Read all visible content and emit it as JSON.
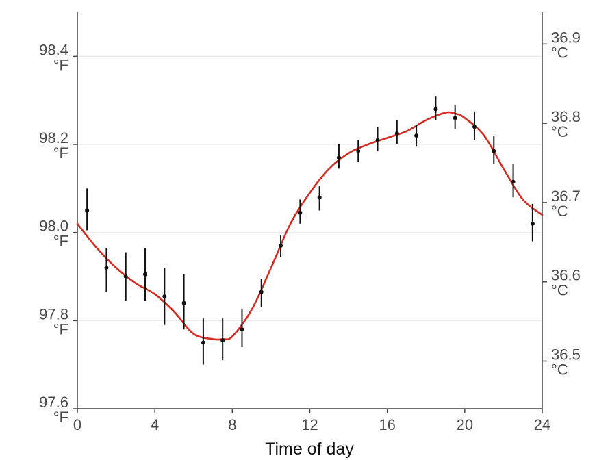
{
  "chart_data": {
    "type": "line",
    "title": "",
    "xlabel": "Time of day",
    "ylabel": "",
    "xlim": [
      0,
      24
    ],
    "ylim": [
      97.6,
      98.5
    ],
    "y2lim": [
      36.44,
      36.94
    ],
    "grid": "horizontal",
    "x_ticks": [
      {
        "value": 0,
        "label": "0"
      },
      {
        "value": 4,
        "label": "4"
      },
      {
        "value": 8,
        "label": "8"
      },
      {
        "value": 12,
        "label": "12"
      },
      {
        "value": 16,
        "label": "16"
      },
      {
        "value": 20,
        "label": "20"
      },
      {
        "value": 24,
        "label": "24"
      }
    ],
    "y_ticks_left": [
      {
        "value": 97.6,
        "num": "97.6",
        "unit": "°F"
      },
      {
        "value": 97.8,
        "num": "97.8",
        "unit": "°F"
      },
      {
        "value": 98.0,
        "num": "98.0",
        "unit": "°F"
      },
      {
        "value": 98.2,
        "num": "98.2",
        "unit": "°F"
      },
      {
        "value": 98.4,
        "num": "98.4",
        "unit": "°F"
      }
    ],
    "y_ticks_right": [
      {
        "value": 36.5,
        "num": "36.5",
        "unit": "°C"
      },
      {
        "value": 36.6,
        "num": "36.6",
        "unit": "°C"
      },
      {
        "value": 36.7,
        "num": "36.7",
        "unit": "°C"
      },
      {
        "value": 36.8,
        "num": "36.8",
        "unit": "°C"
      },
      {
        "value": 36.9,
        "num": "36.9",
        "unit": "°C"
      }
    ],
    "series": [
      {
        "kind": "points_with_error_bars",
        "color": "#111111",
        "x": [
          0.5,
          1.5,
          2.5,
          3.5,
          4.5,
          5.5,
          6.5,
          7.5,
          8.5,
          9.5,
          10.5,
          11.5,
          12.5,
          13.5,
          14.5,
          15.5,
          16.5,
          17.5,
          18.5,
          19.5,
          20.5,
          21.5,
          22.5,
          23.5
        ],
        "y": [
          98.05,
          97.92,
          97.9,
          97.905,
          97.855,
          97.84,
          97.75,
          97.755,
          97.78,
          97.865,
          97.97,
          98.045,
          98.08,
          98.17,
          98.185,
          98.21,
          98.225,
          98.22,
          98.28,
          98.26,
          98.24,
          98.185,
          98.115,
          98.02
        ],
        "y_low": [
          98.005,
          97.865,
          97.845,
          97.845,
          97.79,
          97.78,
          97.7,
          97.71,
          97.74,
          97.83,
          97.945,
          98.02,
          98.05,
          98.145,
          98.16,
          98.185,
          98.2,
          98.195,
          98.255,
          98.235,
          98.21,
          98.155,
          98.08,
          97.98
        ],
        "y_high": [
          98.1,
          97.965,
          97.955,
          97.965,
          97.92,
          97.905,
          97.805,
          97.805,
          97.825,
          97.895,
          97.995,
          98.075,
          98.105,
          98.2,
          98.21,
          98.24,
          98.255,
          98.245,
          98.31,
          98.29,
          98.275,
          98.22,
          98.155,
          98.065
        ]
      },
      {
        "kind": "smooth_curve",
        "color": "#d42a20",
        "x": [
          0,
          1,
          2,
          3,
          4,
          5,
          6,
          7,
          7.5,
          8,
          9,
          10,
          11,
          12,
          13,
          14,
          15,
          16,
          17,
          18,
          19,
          19.5,
          20,
          21,
          22,
          23,
          24
        ],
        "y": [
          98.02,
          97.965,
          97.92,
          97.885,
          97.86,
          97.82,
          97.77,
          97.758,
          97.758,
          97.764,
          97.825,
          97.92,
          98.02,
          98.09,
          98.145,
          98.18,
          98.2,
          98.215,
          98.23,
          98.255,
          98.272,
          98.27,
          98.26,
          98.22,
          98.145,
          98.075,
          98.04
        ]
      }
    ],
    "colors": {
      "axis": "#444444",
      "grid": "#e9e9ee",
      "curve": "#d42a20",
      "points": "#111111"
    }
  }
}
